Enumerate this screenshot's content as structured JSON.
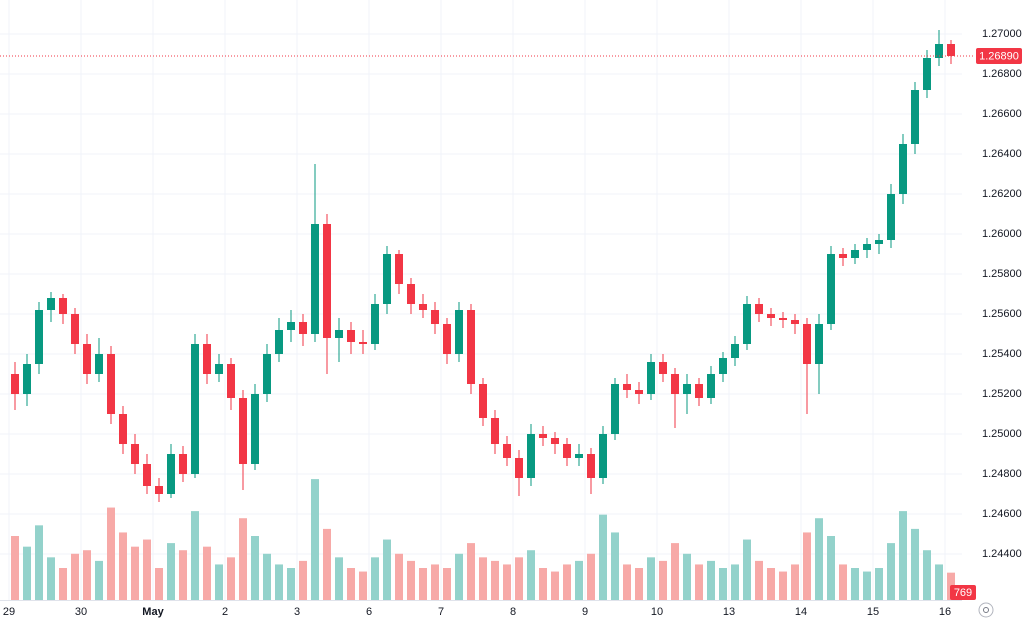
{
  "chart_data": {
    "type": "candlestick",
    "categories": [
      "29",
      null,
      null,
      null,
      null,
      null,
      "30",
      null,
      null,
      null,
      null,
      null,
      "May",
      null,
      null,
      null,
      null,
      null,
      "2",
      null,
      null,
      null,
      null,
      null,
      "3",
      null,
      null,
      null,
      null,
      null,
      "6",
      null,
      null,
      null,
      null,
      null,
      "7",
      null,
      null,
      null,
      null,
      null,
      "8",
      null,
      null,
      null,
      null,
      null,
      "9",
      null,
      null,
      null,
      null,
      null,
      "10",
      null,
      null,
      null,
      null,
      null,
      "13",
      null,
      null,
      null,
      null,
      null,
      "14",
      null,
      null,
      null,
      null,
      null,
      "15",
      null,
      null,
      null,
      null,
      null,
      "16"
    ],
    "ohlc": [
      [
        1.253,
        1.2536,
        1.2512,
        1.252
      ],
      [
        1.252,
        1.254,
        1.2514,
        1.2535
      ],
      [
        1.2535,
        1.2566,
        1.253,
        1.2562
      ],
      [
        1.2562,
        1.2571,
        1.2556,
        1.2568
      ],
      [
        1.2568,
        1.257,
        1.2555,
        1.256
      ],
      [
        1.256,
        1.2563,
        1.254,
        1.2545
      ],
      [
        1.2545,
        1.255,
        1.2525,
        1.253
      ],
      [
        1.253,
        1.2548,
        1.2526,
        1.254
      ],
      [
        1.254,
        1.2544,
        1.2505,
        1.251
      ],
      [
        1.251,
        1.2514,
        1.249,
        1.2495
      ],
      [
        1.2495,
        1.25,
        1.248,
        1.2485
      ],
      [
        1.2485,
        1.249,
        1.247,
        1.2474
      ],
      [
        1.2474,
        1.2478,
        1.2466,
        1.247
      ],
      [
        1.247,
        1.2495,
        1.2468,
        1.249
      ],
      [
        1.249,
        1.2494,
        1.2476,
        1.248
      ],
      [
        1.248,
        1.255,
        1.2478,
        1.2545
      ],
      [
        1.2545,
        1.255,
        1.2525,
        1.253
      ],
      [
        1.253,
        1.254,
        1.2526,
        1.2535
      ],
      [
        1.2535,
        1.2538,
        1.2512,
        1.2518
      ],
      [
        1.2518,
        1.2522,
        1.2472,
        1.2485
      ],
      [
        1.2485,
        1.2525,
        1.2482,
        1.252
      ],
      [
        1.252,
        1.2545,
        1.2516,
        1.254
      ],
      [
        1.254,
        1.2558,
        1.2536,
        1.2552
      ],
      [
        1.2552,
        1.2562,
        1.2546,
        1.2556
      ],
      [
        1.2556,
        1.256,
        1.2544,
        1.255
      ],
      [
        1.255,
        1.2635,
        1.2546,
        1.2605
      ],
      [
        1.2605,
        1.261,
        1.253,
        1.2548
      ],
      [
        1.2548,
        1.2558,
        1.2536,
        1.2552
      ],
      [
        1.2552,
        1.2556,
        1.254,
        1.2546
      ],
      [
        1.2546,
        1.2552,
        1.254,
        1.2545
      ],
      [
        1.2545,
        1.257,
        1.2542,
        1.2565
      ],
      [
        1.2565,
        1.2594,
        1.256,
        1.259
      ],
      [
        1.259,
        1.2592,
        1.257,
        1.2575
      ],
      [
        1.2575,
        1.2578,
        1.256,
        1.2565
      ],
      [
        1.2565,
        1.257,
        1.2558,
        1.2562
      ],
      [
        1.2562,
        1.2566,
        1.255,
        1.2555
      ],
      [
        1.2555,
        1.2558,
        1.2535,
        1.254
      ],
      [
        1.254,
        1.2566,
        1.2536,
        1.2562
      ],
      [
        1.2562,
        1.2565,
        1.252,
        1.2525
      ],
      [
        1.2525,
        1.2528,
        1.2504,
        1.2508
      ],
      [
        1.2508,
        1.2512,
        1.249,
        1.2495
      ],
      [
        1.2495,
        1.2499,
        1.2484,
        1.2488
      ],
      [
        1.2488,
        1.2492,
        1.2469,
        1.2478
      ],
      [
        1.2478,
        1.2505,
        1.2474,
        1.25
      ],
      [
        1.25,
        1.2504,
        1.2494,
        1.2498
      ],
      [
        1.2498,
        1.2501,
        1.249,
        1.2495
      ],
      [
        1.2495,
        1.2498,
        1.2484,
        1.2488
      ],
      [
        1.2488,
        1.2495,
        1.2484,
        1.249
      ],
      [
        1.249,
        1.2493,
        1.247,
        1.2478
      ],
      [
        1.2478,
        1.2504,
        1.2475,
        1.25
      ],
      [
        1.25,
        1.2528,
        1.2497,
        1.2525
      ],
      [
        1.2525,
        1.253,
        1.2518,
        1.2522
      ],
      [
        1.2522,
        1.2526,
        1.2515,
        1.252
      ],
      [
        1.252,
        1.254,
        1.2517,
        1.2536
      ],
      [
        1.2536,
        1.254,
        1.2526,
        1.253
      ],
      [
        1.253,
        1.2533,
        1.2503,
        1.252
      ],
      [
        1.252,
        1.253,
        1.251,
        1.2525
      ],
      [
        1.2525,
        1.2528,
        1.2514,
        1.2518
      ],
      [
        1.2518,
        1.2534,
        1.2515,
        1.253
      ],
      [
        1.253,
        1.2541,
        1.2526,
        1.2538
      ],
      [
        1.2538,
        1.2549,
        1.2534,
        1.2545
      ],
      [
        1.2545,
        1.2569,
        1.2542,
        1.2565
      ],
      [
        1.2565,
        1.2568,
        1.2556,
        1.256
      ],
      [
        1.256,
        1.2563,
        1.2554,
        1.2558
      ],
      [
        1.2558,
        1.2561,
        1.2553,
        1.2557
      ],
      [
        1.2557,
        1.256,
        1.255,
        1.2555
      ],
      [
        1.2555,
        1.2558,
        1.251,
        1.2535
      ],
      [
        1.2535,
        1.256,
        1.252,
        1.2555
      ],
      [
        1.2555,
        1.2594,
        1.2552,
        1.259
      ],
      [
        1.259,
        1.2593,
        1.2584,
        1.2588
      ],
      [
        1.2588,
        1.2595,
        1.2585,
        1.2592
      ],
      [
        1.2592,
        1.2598,
        1.2588,
        1.2595
      ],
      [
        1.2595,
        1.26,
        1.259,
        1.2597
      ],
      [
        1.2597,
        1.2625,
        1.2593,
        1.262
      ],
      [
        1.262,
        1.265,
        1.2615,
        1.2645
      ],
      [
        1.2645,
        1.2676,
        1.264,
        1.2672
      ],
      [
        1.2672,
        1.2692,
        1.2668,
        1.2688
      ],
      [
        1.2688,
        1.2702,
        1.2684,
        1.2695
      ],
      [
        1.2695,
        1.2697,
        1.2685,
        1.2689
      ]
    ],
    "volume": [
      1800,
      1500,
      2100,
      1200,
      900,
      1300,
      1400,
      1100,
      2600,
      1900,
      1500,
      1700,
      900,
      1600,
      1400,
      2500,
      1500,
      1000,
      1200,
      2300,
      1800,
      1300,
      1000,
      900,
      1100,
      3400,
      2000,
      1200,
      900,
      800,
      1200,
      1700,
      1300,
      1100,
      900,
      1000,
      900,
      1300,
      1600,
      1200,
      1100,
      1000,
      1200,
      1400,
      900,
      800,
      1000,
      1100,
      1300,
      2400,
      1900,
      1000,
      900,
      1200,
      1100,
      1600,
      1300,
      1000,
      1100,
      900,
      1000,
      1700,
      1100,
      900,
      800,
      1000,
      1900,
      2300,
      1800,
      1000,
      900,
      800,
      900,
      1600,
      2500,
      2000,
      1400,
      1000,
      769
    ],
    "ylim": [
      1.2417,
      1.2717
    ],
    "yticks": [
      {
        "value": 1.244,
        "label": "1.24400"
      },
      {
        "value": 1.246,
        "label": "1.24600"
      },
      {
        "value": 1.248,
        "label": "1.24800"
      },
      {
        "value": 1.25,
        "label": "1.25000"
      },
      {
        "value": 1.252,
        "label": "1.25200"
      },
      {
        "value": 1.254,
        "label": "1.25400"
      },
      {
        "value": 1.256,
        "label": "1.25600"
      },
      {
        "value": 1.258,
        "label": "1.25800"
      },
      {
        "value": 1.26,
        "label": "1.26000"
      },
      {
        "value": 1.262,
        "label": "1.26200"
      },
      {
        "value": 1.264,
        "label": "1.26400"
      },
      {
        "value": 1.266,
        "label": "1.26600"
      },
      {
        "value": 1.268,
        "label": "1.26800"
      },
      {
        "value": 1.27,
        "label": "1.27000"
      }
    ],
    "volume_lim": [
      0,
      4500
    ],
    "last_price": {
      "value": 1.2689,
      "label": "1.26890"
    },
    "up_color": "#089981",
    "down_color": "#f23645",
    "up_volume_color": "#93d2cb",
    "down_volume_color": "#f7a9a7",
    "grid": true
  }
}
